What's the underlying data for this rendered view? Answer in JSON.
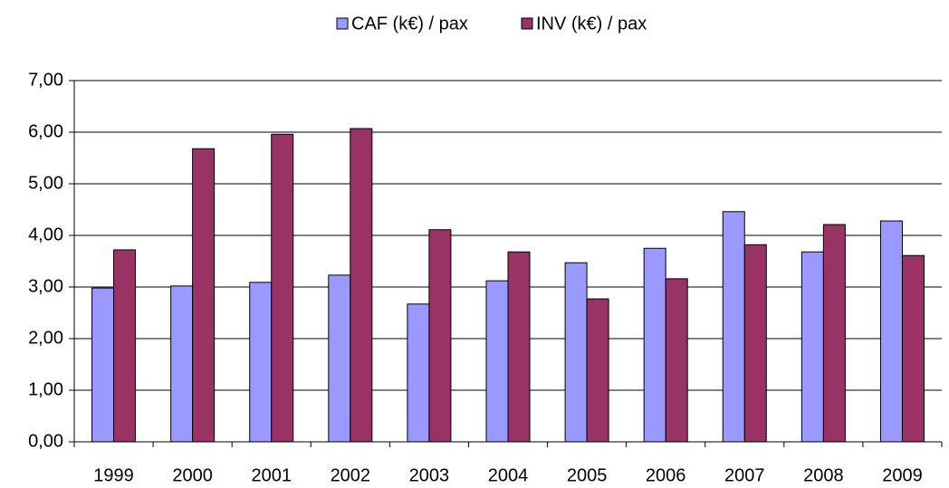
{
  "chart_data": {
    "type": "bar",
    "categories": [
      "1999",
      "2000",
      "2001",
      "2002",
      "2003",
      "2004",
      "2005",
      "2006",
      "2007",
      "2008",
      "2009"
    ],
    "series": [
      {
        "name": "CAF (k€) / pax",
        "color": "#9999ff",
        "values": [
          2.98,
          3.02,
          3.09,
          3.23,
          2.67,
          3.12,
          3.47,
          3.75,
          4.46,
          3.68,
          4.28
        ]
      },
      {
        "name": "INV (k€) / pax",
        "color": "#993366",
        "values": [
          3.72,
          5.68,
          5.96,
          6.07,
          4.11,
          3.68,
          2.77,
          3.16,
          3.82,
          4.21,
          3.61
        ]
      }
    ],
    "ylim": [
      0,
      7
    ],
    "yticks": [
      {
        "value": 0,
        "label": "0,00"
      },
      {
        "value": 1,
        "label": "1,00"
      },
      {
        "value": 2,
        "label": "2,00"
      },
      {
        "value": 3,
        "label": "3,00"
      },
      {
        "value": 4,
        "label": "4,00"
      },
      {
        "value": 5,
        "label": "5,00"
      },
      {
        "value": 6,
        "label": "6,00"
      },
      {
        "value": 7,
        "label": "7,00"
      }
    ],
    "grid": true,
    "legend": "top"
  }
}
